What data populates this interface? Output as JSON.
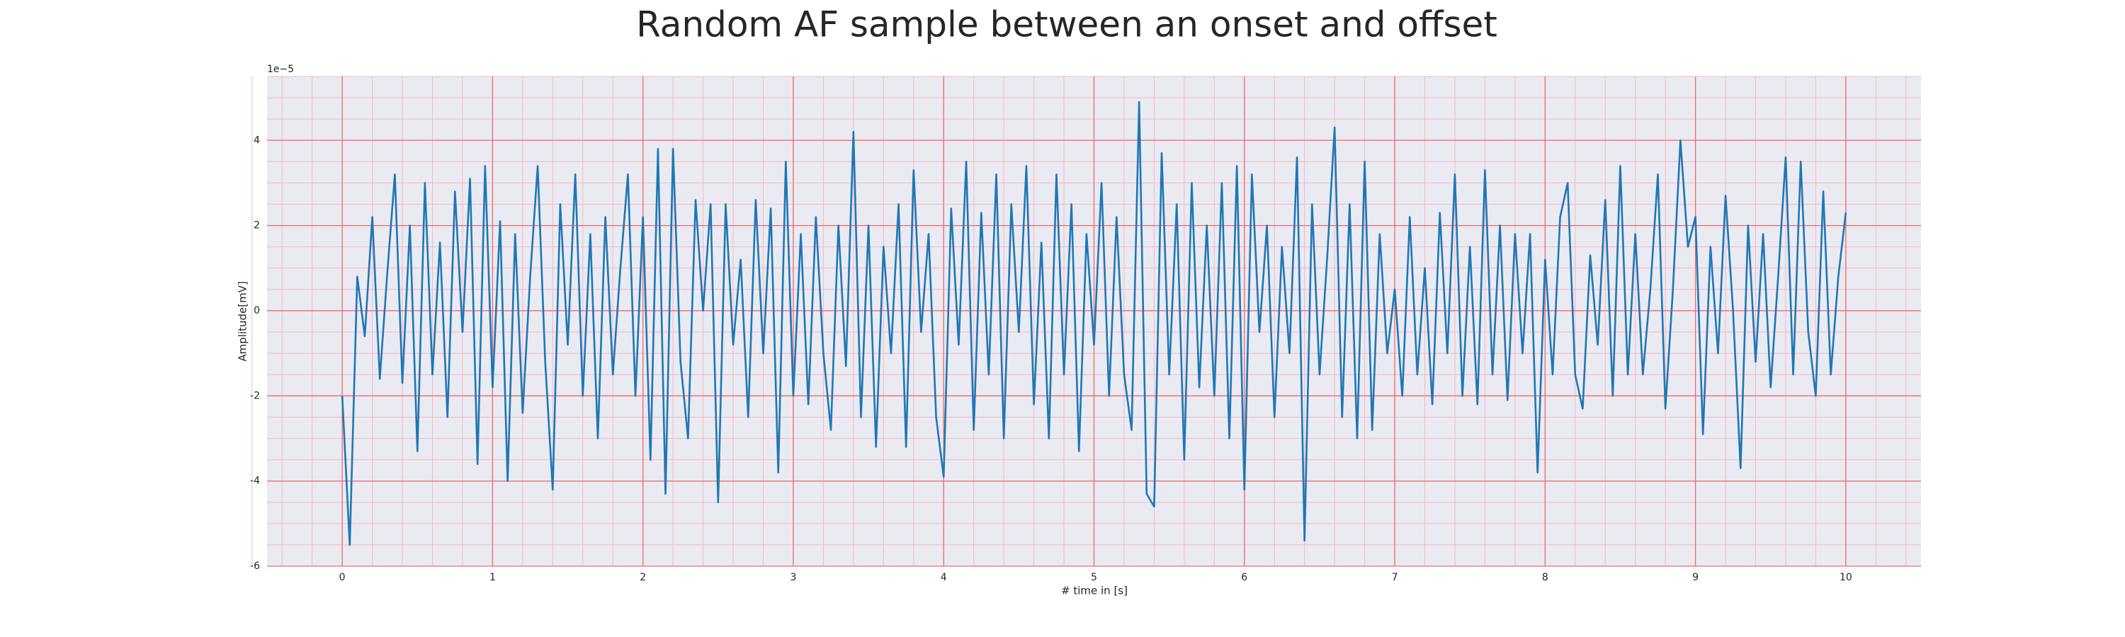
{
  "chart_data": {
    "type": "line",
    "title": "Random AF sample between an onset and offset",
    "x_label": "# time in [s]",
    "y_label": "Amplitude[mV]",
    "y_offset_label": "1e−5",
    "color": "#1f77b4",
    "grid": true,
    "minor_grid": true,
    "xlim": [
      -0.5,
      10.5
    ],
    "ylim": [
      -6,
      5.5
    ],
    "xticks": [
      0,
      1,
      2,
      3,
      4,
      5,
      6,
      7,
      8,
      9,
      10
    ],
    "yticks": [
      -6,
      -4,
      -2,
      0,
      2,
      4
    ],
    "x": [
      0,
      0.05,
      0.1,
      0.15,
      0.2,
      0.25,
      0.3,
      0.35,
      0.4,
      0.45,
      0.5,
      0.55,
      0.6,
      0.65,
      0.7,
      0.75,
      0.8,
      0.85,
      0.9,
      0.95,
      1,
      1.05,
      1.1,
      1.15,
      1.2,
      1.25,
      1.3,
      1.35,
      1.4,
      1.45,
      1.5,
      1.55,
      1.6,
      1.65,
      1.7,
      1.75,
      1.8,
      1.85,
      1.9,
      1.95,
      2,
      2.05,
      2.1,
      2.15,
      2.2,
      2.25,
      2.3,
      2.35,
      2.4,
      2.45,
      2.5,
      2.55,
      2.6,
      2.65,
      2.7,
      2.75,
      2.8,
      2.85,
      2.9,
      2.95,
      3,
      3.05,
      3.1,
      3.15,
      3.2,
      3.25,
      3.3,
      3.35,
      3.4,
      3.45,
      3.5,
      3.55,
      3.6,
      3.65,
      3.7,
      3.75,
      3.8,
      3.85,
      3.9,
      3.95,
      4,
      4.05,
      4.1,
      4.15,
      4.2,
      4.25,
      4.3,
      4.35,
      4.4,
      4.45,
      4.5,
      4.55,
      4.6,
      4.65,
      4.7,
      4.75,
      4.8,
      4.85,
      4.9,
      4.95,
      5,
      5.05,
      5.1,
      5.15,
      5.2,
      5.25,
      5.3,
      5.35,
      5.4,
      5.45,
      5.5,
      5.55,
      5.6,
      5.65,
      5.7,
      5.75,
      5.8,
      5.85,
      5.9,
      5.95,
      6,
      6.05,
      6.1,
      6.15,
      6.2,
      6.25,
      6.3,
      6.35,
      6.4,
      6.45,
      6.5,
      6.55,
      6.6,
      6.65,
      6.7,
      6.75,
      6.8,
      6.85,
      6.9,
      6.95,
      7,
      7.05,
      7.1,
      7.15,
      7.2,
      7.25,
      7.3,
      7.35,
      7.4,
      7.45,
      7.5,
      7.55,
      7.6,
      7.65,
      7.7,
      7.75,
      7.8,
      7.85,
      7.9,
      7.95,
      8,
      8.05,
      8.1,
      8.15,
      8.2,
      8.25,
      8.3,
      8.35,
      8.4,
      8.45,
      8.5,
      8.55,
      8.6,
      8.65,
      8.7,
      8.75,
      8.8,
      8.85,
      8.9,
      8.95,
      9,
      9.05,
      9.1,
      9.15,
      9.2,
      9.25,
      9.3,
      9.35,
      9.4,
      9.45,
      9.5,
      9.55,
      9.6,
      9.65,
      9.7,
      9.75,
      9.8,
      9.85,
      9.9,
      9.95,
      10
    ],
    "values": [
      -2.0,
      -5.5,
      0.8,
      -0.6,
      2.2,
      -1.6,
      0.9,
      3.2,
      -1.7,
      2.0,
      -3.3,
      3.0,
      -1.5,
      1.6,
      -2.5,
      2.8,
      -0.5,
      3.1,
      -3.6,
      3.4,
      -1.8,
      2.1,
      -4.0,
      1.8,
      -2.4,
      0.8,
      3.4,
      -1.2,
      -4.2,
      2.5,
      -0.8,
      3.2,
      -2.0,
      1.8,
      -3.0,
      2.2,
      -1.5,
      1.0,
      3.2,
      -2.0,
      2.2,
      -3.5,
      3.8,
      -4.3,
      3.8,
      -1.2,
      -3.0,
      2.6,
      0.0,
      2.5,
      -4.5,
      2.5,
      -0.8,
      1.2,
      -2.5,
      2.6,
      -1.0,
      2.4,
      -3.8,
      3.5,
      -2.0,
      1.8,
      -2.2,
      2.2,
      -1.0,
      -2.8,
      2.0,
      -1.3,
      4.2,
      -2.5,
      2.0,
      -3.2,
      1.5,
      -1.0,
      2.5,
      -3.2,
      3.3,
      -0.5,
      1.8,
      -2.5,
      -3.9,
      2.4,
      -0.8,
      3.5,
      -2.8,
      2.3,
      -1.5,
      3.2,
      -3.0,
      2.5,
      -0.5,
      3.4,
      -2.2,
      1.6,
      -3.0,
      3.2,
      -1.5,
      2.5,
      -3.3,
      1.8,
      -0.8,
      3.0,
      -2.0,
      2.2,
      -1.5,
      -2.8,
      4.9,
      -4.3,
      -4.6,
      3.7,
      -1.5,
      2.5,
      -3.5,
      3.0,
      -1.8,
      2.0,
      -2.0,
      3.0,
      -3.0,
      3.4,
      -4.2,
      3.2,
      -0.5,
      2.0,
      -2.5,
      1.5,
      -1.0,
      3.6,
      -5.4,
      2.5,
      -1.5,
      1.2,
      4.3,
      -2.5,
      2.5,
      -3.0,
      3.5,
      -2.8,
      1.8,
      -1.0,
      0.5,
      -2.0,
      2.2,
      -1.5,
      1.0,
      -2.2,
      2.3,
      -1.0,
      3.2,
      -2.0,
      1.5,
      -2.2,
      3.3,
      -1.5,
      2.0,
      -2.1,
      1.8,
      -1.0,
      1.8,
      -3.8,
      1.2,
      -1.5,
      2.2,
      3.0,
      -1.5,
      -2.3,
      1.3,
      -0.8,
      2.6,
      -2.0,
      3.4,
      -1.5,
      1.8,
      -1.5,
      0.5,
      3.2,
      -2.3,
      0.5,
      4.0,
      1.5,
      2.2,
      -2.9,
      1.5,
      -1.0,
      2.7,
      0.0,
      -3.7,
      2.0,
      -1.2,
      1.8,
      -1.8,
      0.8,
      3.6,
      -1.5,
      3.5,
      -0.5,
      -2.0,
      2.8,
      -1.5,
      0.8,
      2.3
    ]
  }
}
